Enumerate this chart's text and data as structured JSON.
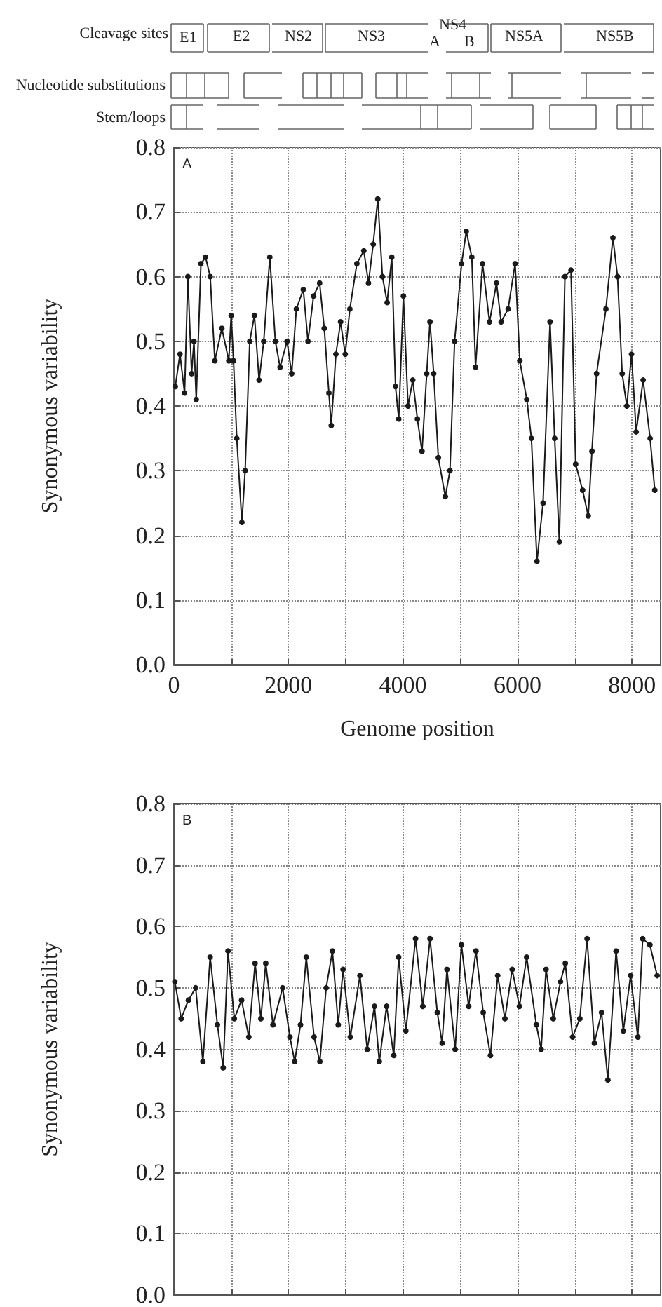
{
  "chart_data": [
    {
      "type": "line",
      "xlabel": "Genome position",
      "ylabel": "Synonymous variability",
      "annotations": [
        "Cleavage sites",
        "E1",
        "E2",
        "NS2",
        "NS3",
        "NS4",
        "A",
        "B",
        "NS5A",
        "NS5B",
        "Nucleotide substitutions",
        "Stem/loops",
        "A"
      ],
      "x": [
        24,
        106,
        187,
        244,
        309,
        350,
        390,
        472,
        553,
        634,
        715,
        837,
        959,
        1000,
        1041,
        1098,
        1187,
        1244,
        1325,
        1406,
        1488,
        1569,
        1675,
        1772,
        1854,
        1976,
        2057,
        2138,
        2260,
        2341,
        2439,
        2545,
        2626,
        2707,
        2748,
        2829,
        2911,
        2992,
        3073,
        3195,
        3317,
        3398,
        3480,
        3561,
        3642,
        3724,
        3805,
        3870,
        3927,
        4008,
        4089,
        4171,
        4252,
        4333,
        4415,
        4472,
        4537,
        4618,
        4740,
        4821,
        4902,
        5024,
        5106,
        5203,
        5268,
        5390,
        5512,
        5634,
        5715,
        5837,
        5959,
        6041,
        6163,
        6244,
        6341,
        6447,
        6569,
        6650,
        6732,
        6829,
        6935,
        7016,
        7138,
        7236,
        7301,
        7382,
        7545,
        7667,
        7748,
        7829,
        7910,
        7992,
        8073,
        8195,
        8317,
        8398
      ],
      "series": [
        {
          "color": "#1a1a1a",
          "values": [
            0.43,
            0.48,
            0.42,
            0.6,
            0.45,
            0.5,
            0.41,
            0.62,
            0.63,
            0.6,
            0.47,
            0.52,
            0.47,
            0.54,
            0.47,
            0.35,
            0.22,
            0.3,
            0.5,
            0.54,
            0.44,
            0.5,
            0.63,
            0.5,
            0.46,
            0.5,
            0.45,
            0.55,
            0.58,
            0.5,
            0.57,
            0.59,
            0.52,
            0.42,
            0.37,
            0.48,
            0.53,
            0.48,
            0.55,
            0.62,
            0.64,
            0.59,
            0.65,
            0.72,
            0.6,
            0.56,
            0.63,
            0.43,
            0.38,
            0.57,
            0.4,
            0.44,
            0.38,
            0.33,
            0.45,
            0.53,
            0.45,
            0.32,
            0.26,
            0.3,
            0.5,
            0.62,
            0.67,
            0.63,
            0.46,
            0.62,
            0.53,
            0.59,
            0.53,
            0.55,
            0.62,
            0.47,
            0.41,
            0.35,
            0.16,
            0.25,
            0.53,
            0.35,
            0.19,
            0.6,
            0.61,
            0.31,
            0.27,
            0.23,
            0.33,
            0.45,
            0.55,
            0.66,
            0.6,
            0.45,
            0.4,
            0.48,
            0.36,
            0.44,
            0.35,
            0.27
          ]
        }
      ],
      "xlim": [
        0,
        8500
      ],
      "xticks": [
        0,
        {
          "value": 1000,
          "label": null
        },
        2000,
        {
          "value": 3000,
          "label": null
        },
        4000,
        {
          "value": 5000,
          "label": null
        },
        6000,
        {
          "value": 7000,
          "label": null
        },
        8000
      ],
      "ylim": [
        0,
        0.8
      ],
      "yticks": [
        {
          "value": 0,
          "label": "0.0"
        },
        0.1,
        0.2,
        0.3,
        0.4,
        0.5,
        0.6,
        0.7,
        0.8
      ],
      "grid": true,
      "marker": "circle",
      "line_style": "solid"
    },
    {
      "type": "line",
      "ylabel": "Synonymous variability",
      "annotations": [
        "B"
      ],
      "x": [
        17,
        127,
        253,
        380,
        506,
        633,
        760,
        861,
        945,
        1055,
        1182,
        1308,
        1418,
        1519,
        1604,
        1730,
        1899,
        2026,
        2110,
        2211,
        2312,
        2448,
        2549,
        2659,
        2768,
        2870,
        2954,
        3081,
        3249,
        3376,
        3503,
        3587,
        3714,
        3840,
        3925,
        4051,
        4220,
        4347,
        4473,
        4600,
        4684,
        4769,
        4912,
        5022,
        5148,
        5275,
        5402,
        5528,
        5655,
        5781,
        5908,
        6035,
        6161,
        6330,
        6414,
        6499,
        6625,
        6752,
        6836,
        6963,
        7090,
        7216,
        7343,
        7469,
        7579,
        7723,
        7849,
        7976,
        8102,
        8187,
        8313,
        8440
      ],
      "series": [
        {
          "color": "#1a1a1a",
          "values": [
            0.51,
            0.45,
            0.48,
            0.5,
            0.38,
            0.55,
            0.44,
            0.37,
            0.56,
            0.45,
            0.48,
            0.42,
            0.54,
            0.45,
            0.54,
            0.44,
            0.5,
            0.42,
            0.38,
            0.44,
            0.55,
            0.42,
            0.38,
            0.5,
            0.56,
            0.44,
            0.53,
            0.42,
            0.52,
            0.4,
            0.47,
            0.38,
            0.47,
            0.39,
            0.55,
            0.43,
            0.58,
            0.47,
            0.58,
            0.46,
            0.41,
            0.53,
            0.4,
            0.57,
            0.47,
            0.56,
            0.46,
            0.39,
            0.52,
            0.45,
            0.53,
            0.47,
            0.55,
            0.44,
            0.4,
            0.53,
            0.45,
            0.51,
            0.54,
            0.42,
            0.45,
            0.58,
            0.41,
            0.46,
            0.35,
            0.56,
            0.43,
            0.52,
            0.42,
            0.58,
            0.57,
            0.52
          ]
        }
      ],
      "xlim": [
        0,
        8500
      ],
      "xticks": [
        0,
        {
          "value": 1000,
          "label": null
        },
        2000,
        {
          "value": 3000,
          "label": null
        },
        4000,
        {
          "value": 5000,
          "label": null
        },
        6000,
        {
          "value": 7000,
          "label": null
        },
        8000
      ],
      "ylim": [
        0,
        0.8
      ],
      "yticks": [
        {
          "value": 0,
          "label": "0.0"
        },
        0.1,
        0.2,
        0.3,
        0.4,
        0.5,
        0.6,
        0.7,
        0.8
      ],
      "tick_labels": "y",
      "grid": true,
      "marker": "circle",
      "line_style": "solid"
    }
  ]
}
